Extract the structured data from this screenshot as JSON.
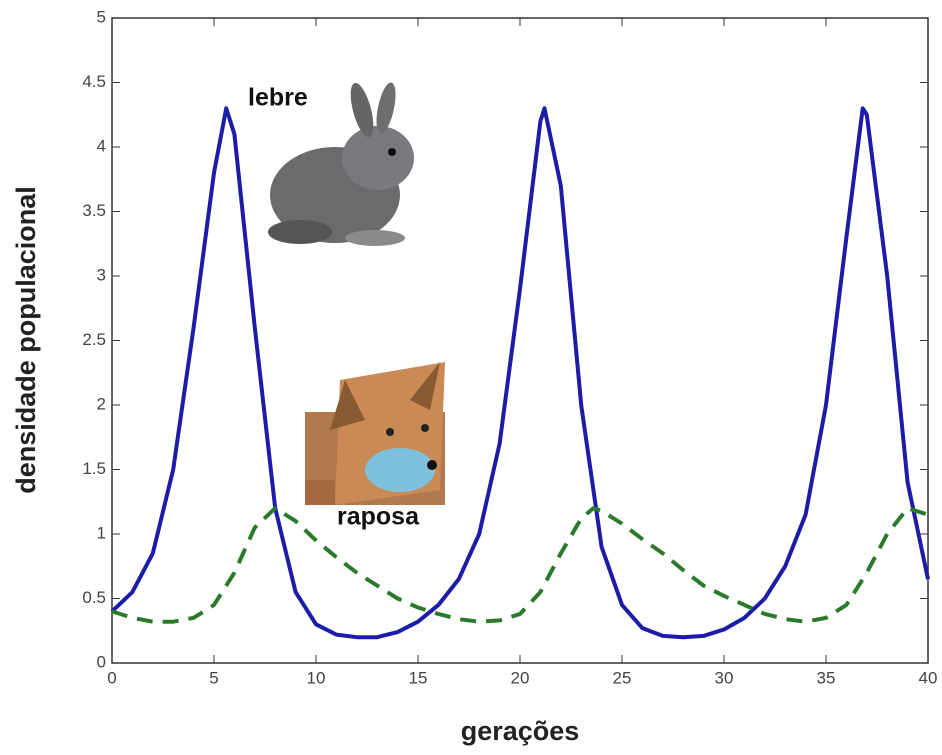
{
  "chart_data": {
    "type": "line",
    "xlabel": "gerações",
    "ylabel": "densidade populacional",
    "xlim": [
      0,
      40
    ],
    "ylim": [
      0,
      5
    ],
    "xticks": [
      0,
      5,
      10,
      15,
      20,
      25,
      30,
      35,
      40
    ],
    "yticks": [
      0,
      0.5,
      1,
      1.5,
      2,
      2.5,
      3,
      3.5,
      4,
      4.5,
      5
    ],
    "grid": false,
    "series": [
      {
        "name": "lebre",
        "color": "#1c1ca6",
        "dash": false,
        "x": [
          0,
          1,
          2,
          3,
          4,
          5,
          5.6,
          6,
          7,
          8,
          9,
          10,
          11,
          12,
          12.5,
          13,
          14,
          15,
          16,
          17,
          18,
          19,
          20,
          21,
          21.2,
          22,
          23,
          24,
          25,
          26,
          27,
          28,
          29,
          30,
          31,
          32,
          33,
          34,
          35,
          36,
          36.8,
          37,
          38,
          39,
          40
        ],
        "values": [
          0.4,
          0.55,
          0.85,
          1.5,
          2.6,
          3.8,
          4.3,
          4.1,
          2.6,
          1.2,
          0.55,
          0.3,
          0.22,
          0.2,
          0.2,
          0.2,
          0.24,
          0.32,
          0.45,
          0.65,
          1.0,
          1.7,
          2.9,
          4.2,
          4.3,
          3.7,
          2.0,
          0.9,
          0.45,
          0.27,
          0.21,
          0.2,
          0.21,
          0.26,
          0.35,
          0.5,
          0.75,
          1.15,
          2.0,
          3.3,
          4.3,
          4.25,
          3.0,
          1.4,
          0.65
        ]
      },
      {
        "name": "raposa",
        "color": "#2b7a2b",
        "dash": true,
        "x": [
          0,
          1,
          2,
          3,
          4,
          5,
          6,
          7,
          8,
          9,
          10,
          11,
          12,
          13,
          14,
          15,
          16,
          17,
          18,
          19,
          20,
          21,
          22,
          23,
          23.6,
          24,
          25,
          26,
          27,
          28,
          29,
          30,
          31,
          32,
          33,
          34,
          35,
          36,
          37,
          38,
          39,
          40
        ],
        "values": [
          0.4,
          0.35,
          0.32,
          0.32,
          0.35,
          0.45,
          0.7,
          1.05,
          1.2,
          1.1,
          0.95,
          0.82,
          0.7,
          0.6,
          0.5,
          0.43,
          0.38,
          0.34,
          0.32,
          0.33,
          0.38,
          0.55,
          0.85,
          1.12,
          1.2,
          1.18,
          1.08,
          0.96,
          0.85,
          0.72,
          0.6,
          0.52,
          0.45,
          0.38,
          0.34,
          0.32,
          0.35,
          0.45,
          0.7,
          1.0,
          1.2,
          1.15
        ]
      }
    ]
  }
}
